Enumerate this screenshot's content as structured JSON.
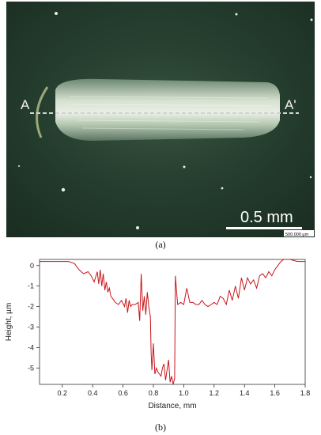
{
  "panel_a": {
    "caption": "(a)",
    "label_start": "A",
    "label_end": "A'",
    "scale_label": "0.5 mm",
    "scale_small": "500.000 µm",
    "colors": {
      "background": "#233a2c",
      "scar": "#dfe9d8",
      "dash": "#cfd4cf"
    }
  },
  "panel_b": {
    "caption": "(b)"
  },
  "chart_data": {
    "type": "line",
    "title": "",
    "xlabel": "Distance, mm",
    "ylabel": "Height, µm",
    "xlim": [
      0.05,
      1.8
    ],
    "ylim": [
      -5.8,
      0.3
    ],
    "xticks": [
      0.2,
      0.4,
      0.6,
      0.8,
      1.0,
      1.2,
      1.4,
      1.6,
      1.8
    ],
    "yticks": [
      0,
      -1,
      -2,
      -3,
      -4,
      -5
    ],
    "grid": false,
    "line_color": "#c8161d",
    "series": [
      {
        "x": [
          0.05,
          0.1,
          0.15,
          0.2,
          0.24,
          0.28,
          0.31,
          0.34,
          0.37,
          0.39,
          0.41,
          0.43,
          0.44,
          0.45,
          0.46,
          0.47,
          0.48,
          0.49,
          0.5,
          0.51,
          0.52,
          0.53,
          0.55,
          0.57,
          0.59,
          0.61,
          0.62,
          0.63,
          0.64,
          0.65,
          0.66,
          0.68,
          0.7,
          0.71,
          0.72,
          0.73,
          0.74,
          0.75,
          0.76,
          0.77,
          0.78,
          0.785,
          0.79,
          0.8,
          0.81,
          0.82,
          0.83,
          0.84,
          0.85,
          0.86,
          0.87,
          0.88,
          0.89,
          0.9,
          0.91,
          0.92,
          0.93,
          0.94,
          0.945,
          0.95,
          0.96,
          0.98,
          1.0,
          1.02,
          1.04,
          1.06,
          1.08,
          1.1,
          1.12,
          1.14,
          1.16,
          1.18,
          1.2,
          1.22,
          1.24,
          1.26,
          1.28,
          1.3,
          1.32,
          1.34,
          1.36,
          1.38,
          1.4,
          1.42,
          1.44,
          1.46,
          1.48,
          1.5,
          1.52,
          1.54,
          1.56,
          1.58,
          1.6,
          1.62,
          1.64,
          1.66,
          1.7,
          1.75,
          1.8
        ],
        "y": [
          0.2,
          0.2,
          0.2,
          0.2,
          0.2,
          0.1,
          -0.2,
          -0.4,
          -0.3,
          -0.5,
          -0.8,
          -0.3,
          -0.9,
          -0.2,
          -1.0,
          -0.4,
          -1.2,
          -0.8,
          -1.3,
          -1.1,
          -1.5,
          -1.6,
          -1.8,
          -1.9,
          -1.7,
          -2.0,
          -1.6,
          -2.3,
          -1.7,
          -2.0,
          -1.9,
          -1.9,
          -1.8,
          -2.7,
          -0.4,
          -2.2,
          -1.5,
          -2.4,
          -1.3,
          -2.0,
          -2.5,
          -4.2,
          -5.1,
          -3.8,
          -5.3,
          -5.0,
          -5.2,
          -5.3,
          -5.4,
          -5.0,
          -4.8,
          -5.6,
          -5.1,
          -4.6,
          -5.7,
          -5.4,
          -5.8,
          -5.5,
          -0.5,
          -1.0,
          -1.9,
          -1.8,
          -1.9,
          -1.1,
          -1.8,
          -1.8,
          -1.9,
          -1.9,
          -1.7,
          -1.9,
          -2.0,
          -1.9,
          -1.8,
          -1.9,
          -1.5,
          -1.6,
          -1.9,
          -1.2,
          -1.7,
          -1.0,
          -1.6,
          -0.6,
          -1.2,
          -0.6,
          -0.9,
          -0.7,
          -1.1,
          -0.5,
          -0.4,
          -0.6,
          -0.3,
          -0.5,
          -0.2,
          0.0,
          0.2,
          0.3,
          0.3,
          0.2,
          0.2
        ]
      }
    ]
  }
}
